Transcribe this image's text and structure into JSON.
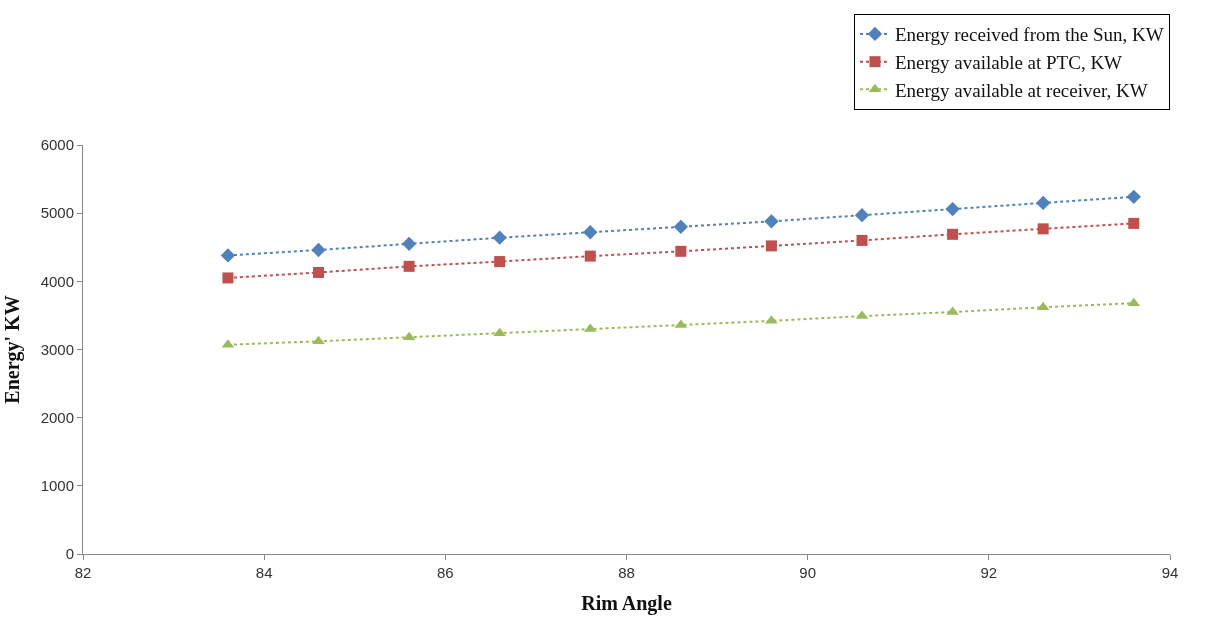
{
  "chart_data": {
    "type": "line",
    "xlabel": "Rim Angle",
    "ylabel": "Energy' KW",
    "x": [
      83.6,
      84.6,
      85.6,
      86.6,
      87.6,
      88.6,
      89.6,
      90.6,
      91.6,
      92.6,
      93.6
    ],
    "series": [
      {
        "name": "Energy received from the Sun, KW",
        "color": "#4f81bd",
        "marker": "diamond",
        "values": [
          4380,
          4460,
          4550,
          4640,
          4720,
          4800,
          4880,
          4970,
          5060,
          5150,
          5240
        ]
      },
      {
        "name": "Energy available at PTC, KW",
        "color": "#c0504d",
        "marker": "square",
        "values": [
          4050,
          4130,
          4220,
          4290,
          4370,
          4440,
          4520,
          4600,
          4690,
          4770,
          4850
        ]
      },
      {
        "name": "Energy available at receiver, KW",
        "color": "#9bbb59",
        "marker": "triangle",
        "values": [
          3070,
          3120,
          3180,
          3240,
          3300,
          3360,
          3420,
          3490,
          3550,
          3620,
          3680
        ]
      }
    ],
    "xlim": [
      82,
      94
    ],
    "xticks": [
      82,
      84,
      86,
      88,
      90,
      92,
      94
    ],
    "ylim": [
      0,
      6000
    ],
    "yticks": [
      0,
      1000,
      2000,
      3000,
      4000,
      5000,
      6000
    ],
    "legend": "top right",
    "line_style": "dotted"
  }
}
